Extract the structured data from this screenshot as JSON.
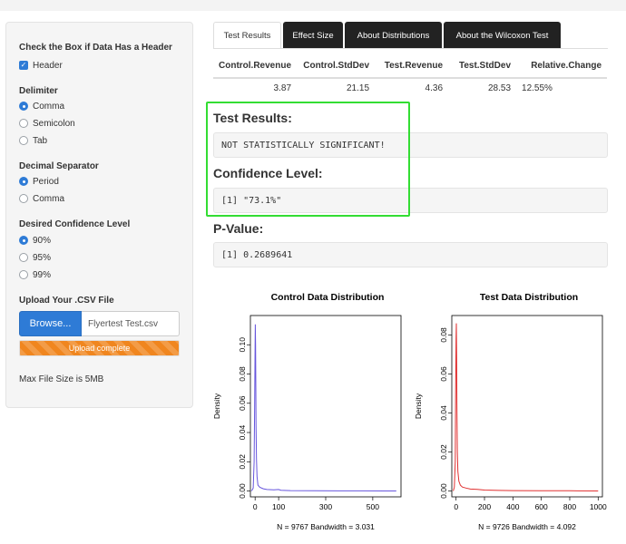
{
  "sidebar": {
    "header_group": {
      "label": "Check the Box if Data Has a Header",
      "checkbox_label": "Header",
      "checked": true
    },
    "delimiter": {
      "label": "Delimiter",
      "options": [
        "Comma",
        "Semicolon",
        "Tab"
      ],
      "selected": "Comma"
    },
    "decimal": {
      "label": "Decimal Separator",
      "options": [
        "Period",
        "Comma"
      ],
      "selected": "Period"
    },
    "confidence": {
      "label": "Desired Confidence Level",
      "options": [
        "90%",
        "95%",
        "99%"
      ],
      "selected": "90%"
    },
    "upload": {
      "label": "Upload Your .CSV File",
      "button_label": "Browse...",
      "file_name": "Flyertest Test.csv",
      "progress_text": "Upload complete",
      "progress_percent": 100
    },
    "max_size_text": "Max File Size is 5MB"
  },
  "tabs": [
    {
      "label": "Test Results",
      "active": true
    },
    {
      "label": "Effect Size",
      "active": false
    },
    {
      "label": "About Distributions",
      "active": false
    },
    {
      "label": "About the Wilcoxon Test",
      "active": false
    }
  ],
  "summary_table": {
    "headers": [
      "Control.Revenue",
      "Control.StdDev",
      "Test.Revenue",
      "Test.StdDev",
      "Relative.Change"
    ],
    "row": [
      "3.87",
      "21.15",
      "4.36",
      "28.53",
      "12.55%"
    ]
  },
  "results": {
    "test_results_title": "Test Results:",
    "test_results_value": "NOT STATISTICALLY SIGNIFICANT!",
    "confidence_title": "Confidence Level:",
    "confidence_value": "[1] \"73.1%\"",
    "pvalue_title": "P-Value:",
    "pvalue_value": "[1] 0.2689641"
  },
  "colors": {
    "highlight": "#33dd33",
    "control_line": "#6655dd",
    "test_line": "#e03030",
    "accent": "#2e7bd6",
    "progress": "#f0861f"
  },
  "chart_data": [
    {
      "type": "line",
      "title": "Control Data Distribution",
      "xlabel": "N = 9767   Bandwidth = 3.031",
      "ylabel": "Density",
      "xlim": [
        -20,
        620
      ],
      "ylim": [
        -0.004,
        0.12
      ],
      "xticks": [
        0,
        100,
        300,
        500
      ],
      "yticks": [
        0.0,
        0.02,
        0.04,
        0.06,
        0.08,
        0.1
      ],
      "x": [
        -15,
        -8,
        -4,
        -2,
        0,
        1,
        2,
        3,
        4,
        6,
        8,
        12,
        20,
        35,
        50,
        80,
        100,
        110,
        150,
        250,
        350,
        450,
        550,
        600
      ],
      "y": [
        0,
        0.002,
        0.02,
        0.06,
        0.1,
        0.114,
        0.1,
        0.07,
        0.045,
        0.022,
        0.01,
        0.004,
        0.0025,
        0.0015,
        0.001,
        0.0008,
        0.001,
        0.0005,
        0.0003,
        0.0002,
        0.0001,
        0.0001,
        0,
        0
      ],
      "grid": false,
      "color": "#6655dd"
    },
    {
      "type": "line",
      "title": "Test Data Distribution",
      "xlabel": "N = 9726   Bandwidth = 4.092",
      "ylabel": "Density",
      "xlim": [
        -30,
        1030
      ],
      "ylim": [
        -0.003,
        0.09
      ],
      "xticks": [
        0,
        200,
        400,
        600,
        800,
        1000
      ],
      "yticks": [
        0.0,
        0.02,
        0.04,
        0.06,
        0.08
      ],
      "x": [
        -20,
        -12,
        -6,
        -3,
        0,
        2,
        4,
        6,
        9,
        13,
        20,
        30,
        45,
        70,
        100,
        150,
        200,
        300,
        400,
        600,
        800,
        1000
      ],
      "y": [
        0,
        0.002,
        0.015,
        0.05,
        0.078,
        0.086,
        0.07,
        0.045,
        0.02,
        0.01,
        0.005,
        0.003,
        0.002,
        0.0015,
        0.001,
        0.0008,
        0.0005,
        0.0003,
        0.0002,
        0.0001,
        0.0001,
        0
      ],
      "grid": false,
      "color": "#e03030"
    }
  ]
}
